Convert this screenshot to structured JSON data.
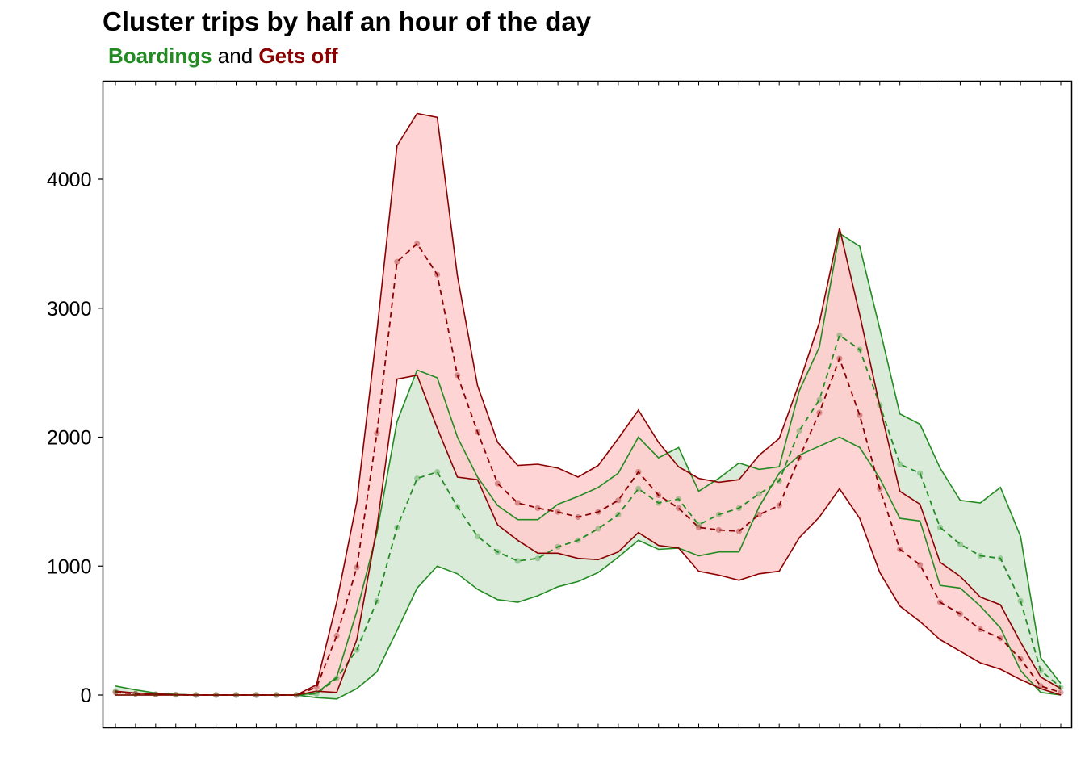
{
  "title": "Cluster trips by half an hour of the day",
  "subtitle": {
    "part1": "Boardings",
    "part2": " and ",
    "part3": "Gets off",
    "color1": "#228B22",
    "color3": "#8B0000"
  },
  "chart_data": {
    "type": "area",
    "x": [
      0,
      1,
      2,
      3,
      4,
      5,
      6,
      7,
      8,
      9,
      10,
      11,
      12,
      13,
      14,
      15,
      16,
      17,
      18,
      19,
      20,
      21,
      22,
      23,
      24,
      25,
      26,
      27,
      28,
      29,
      30,
      31,
      32,
      33,
      34,
      35,
      36,
      37,
      38,
      39,
      40,
      41,
      42,
      43,
      44,
      45,
      46,
      47
    ],
    "ylim": [
      -250,
      4750
    ],
    "yticks": [
      0,
      1000,
      2000,
      3000,
      4000
    ],
    "grid": false,
    "series": [
      {
        "name": "Boardings",
        "line_color": "#228B22",
        "fill_color": "#d4e8d4",
        "mean": [
          30,
          10,
          5,
          2,
          0,
          0,
          0,
          0,
          0,
          0,
          10,
          130,
          350,
          730,
          1300,
          1680,
          1730,
          1460,
          1230,
          1110,
          1040,
          1060,
          1150,
          1200,
          1290,
          1400,
          1600,
          1490,
          1520,
          1320,
          1400,
          1450,
          1560,
          1660,
          2050,
          2290,
          2790,
          2680,
          2250,
          1790,
          1720,
          1300,
          1170,
          1080,
          1060,
          730,
          190,
          60
        ],
        "upper": [
          70,
          40,
          15,
          5,
          0,
          0,
          0,
          0,
          0,
          0,
          15,
          140,
          650,
          1260,
          2120,
          2520,
          2460,
          2000,
          1690,
          1470,
          1360,
          1360,
          1480,
          1540,
          1610,
          1720,
          2000,
          1840,
          1920,
          1580,
          1680,
          1800,
          1750,
          1770,
          2360,
          2700,
          3580,
          3480,
          2840,
          2180,
          2100,
          1760,
          1510,
          1490,
          1610,
          1230,
          290,
          90
        ],
        "lower": [
          0,
          0,
          0,
          0,
          0,
          0,
          0,
          0,
          0,
          0,
          -20,
          -30,
          50,
          180,
          500,
          830,
          1000,
          940,
          820,
          740,
          720,
          770,
          840,
          880,
          950,
          1070,
          1200,
          1130,
          1140,
          1080,
          1110,
          1110,
          1460,
          1720,
          1860,
          1930,
          2000,
          1920,
          1680,
          1370,
          1350,
          850,
          830,
          690,
          520,
          190,
          20,
          0
        ]
      },
      {
        "name": "Gets off",
        "line_color": "#8B0000",
        "fill_color": "#ffcccc",
        "mean": [
          20,
          10,
          5,
          2,
          0,
          0,
          0,
          0,
          0,
          0,
          60,
          460,
          990,
          2030,
          3360,
          3500,
          3260,
          2480,
          2040,
          1640,
          1490,
          1450,
          1420,
          1380,
          1420,
          1510,
          1730,
          1550,
          1450,
          1300,
          1280,
          1270,
          1400,
          1470,
          1840,
          2190,
          2610,
          2170,
          1600,
          1130,
          1010,
          720,
          630,
          510,
          440,
          280,
          70,
          20
        ],
        "upper": [
          30,
          15,
          8,
          3,
          0,
          0,
          0,
          0,
          0,
          0,
          80,
          720,
          1500,
          2820,
          4260,
          4510,
          4480,
          3250,
          2400,
          1960,
          1780,
          1790,
          1760,
          1690,
          1780,
          1990,
          2210,
          1960,
          1770,
          1680,
          1650,
          1670,
          1860,
          1990,
          2420,
          2890,
          3620,
          2950,
          2240,
          1580,
          1480,
          1030,
          920,
          760,
          700,
          410,
          140,
          50
        ],
        "lower": [
          0,
          0,
          0,
          0,
          0,
          0,
          0,
          0,
          0,
          0,
          30,
          20,
          430,
          1300,
          2450,
          2480,
          2070,
          1690,
          1670,
          1320,
          1200,
          1100,
          1100,
          1060,
          1050,
          1110,
          1260,
          1160,
          1140,
          960,
          930,
          890,
          940,
          960,
          1220,
          1380,
          1600,
          1370,
          950,
          690,
          570,
          430,
          340,
          250,
          200,
          120,
          50,
          0
        ]
      }
    ]
  }
}
